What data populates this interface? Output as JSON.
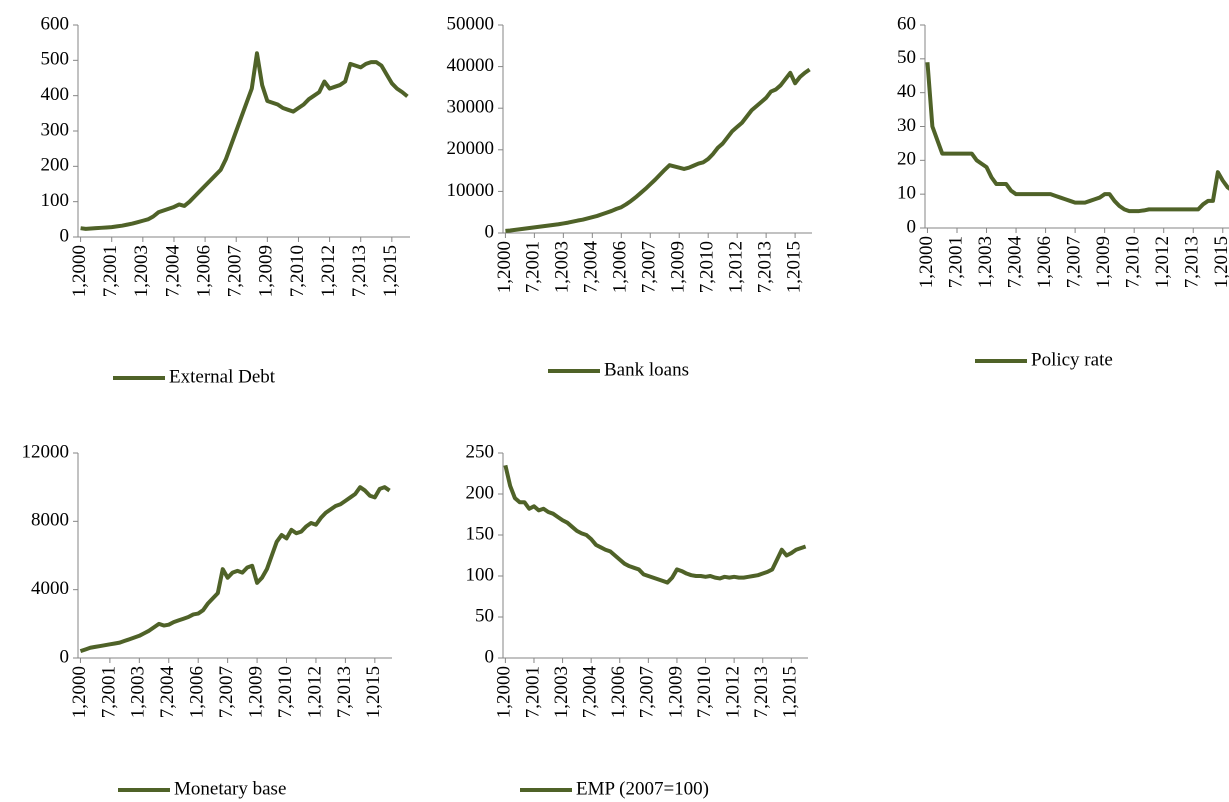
{
  "chart_data": [
    {
      "type": "line",
      "categories": [
        "1,2000",
        null,
        null,
        null,
        null,
        null,
        "7,2001",
        null,
        null,
        null,
        null,
        null,
        "1,2003",
        null,
        null,
        null,
        null,
        null,
        "7,2004",
        null,
        null,
        null,
        null,
        null,
        "1,2006",
        null,
        null,
        null,
        null,
        null,
        "7,2007",
        null,
        null,
        null,
        null,
        null,
        "1,2009",
        null,
        null,
        null,
        null,
        null,
        "7,2010",
        null,
        null,
        null,
        null,
        null,
        "1,2012",
        null,
        null,
        null,
        null,
        null,
        "7,2013",
        null,
        null,
        null,
        null,
        null,
        "1,2015",
        null,
        null,
        null
      ],
      "series": [
        {
          "name": "External Debt",
          "color": "#4f6228",
          "values": [
            25,
            23,
            24,
            25,
            26,
            27,
            28,
            30,
            32,
            35,
            38,
            42,
            46,
            50,
            58,
            70,
            75,
            80,
            85,
            92,
            88,
            100,
            115,
            130,
            145,
            160,
            175,
            190,
            220,
            260,
            300,
            340,
            380,
            420,
            520,
            430,
            385,
            380,
            375,
            365,
            360,
            355,
            365,
            375,
            390,
            400,
            410,
            440,
            420,
            425,
            430,
            440,
            490,
            485,
            480,
            490,
            495,
            495,
            485,
            460,
            435,
            420,
            410,
            398
          ]
        }
      ],
      "ylim": [
        0,
        600
      ],
      "yticks": [
        0,
        100,
        200,
        300,
        400,
        500,
        600
      ]
    },
    {
      "type": "line",
      "categories": [
        "1,2000",
        null,
        null,
        null,
        null,
        null,
        "7,2001",
        null,
        null,
        null,
        null,
        null,
        "1,2003",
        null,
        null,
        null,
        null,
        null,
        "7,2004",
        null,
        null,
        null,
        null,
        null,
        "1,2006",
        null,
        null,
        null,
        null,
        null,
        "7,2007",
        null,
        null,
        null,
        null,
        null,
        "1,2009",
        null,
        null,
        null,
        null,
        null,
        "7,2010",
        null,
        null,
        null,
        null,
        null,
        "1,2012",
        null,
        null,
        null,
        null,
        null,
        "7,2013",
        null,
        null,
        null,
        null,
        null,
        "1,2015",
        null,
        null,
        null
      ],
      "series": [
        {
          "name": "Bank loans",
          "color": "#4f6228",
          "values": [
            500,
            600,
            750,
            900,
            1050,
            1200,
            1350,
            1500,
            1650,
            1800,
            1950,
            2100,
            2300,
            2500,
            2750,
            3000,
            3200,
            3500,
            3800,
            4100,
            4500,
            4900,
            5300,
            5800,
            6200,
            6900,
            7700,
            8600,
            9600,
            10600,
            11700,
            12800,
            14000,
            15200,
            16300,
            16000,
            15700,
            15400,
            15700,
            16200,
            16700,
            17000,
            17800,
            19000,
            20500,
            21500,
            23000,
            24500,
            25500,
            26500,
            28000,
            29500,
            30500,
            31500,
            32500,
            34000,
            34500,
            35500,
            37000,
            38500,
            36000,
            37500,
            38500,
            39300
          ]
        }
      ],
      "ylim": [
        0,
        50000
      ],
      "yticks": [
        0,
        10000,
        20000,
        30000,
        40000,
        50000
      ]
    },
    {
      "type": "line",
      "categories": [
        "1,2000",
        null,
        null,
        null,
        null,
        null,
        "7,2001",
        null,
        null,
        null,
        null,
        null,
        "1,2003",
        null,
        null,
        null,
        null,
        null,
        "7,2004",
        null,
        null,
        null,
        null,
        null,
        "1,2006",
        null,
        null,
        null,
        null,
        null,
        "7,2007",
        null,
        null,
        null,
        null,
        null,
        "1,2009",
        null,
        null,
        null,
        null,
        null,
        "7,2010",
        null,
        null,
        null,
        null,
        null,
        "1,2012",
        null,
        null,
        null,
        null,
        null,
        "7,2013",
        null,
        null,
        null,
        null,
        null,
        "1,2015",
        null,
        null,
        null
      ],
      "series": [
        {
          "name": "Policy rate",
          "color": "#4f6228",
          "values": [
            49,
            30,
            26,
            22,
            22,
            22,
            22,
            22,
            22,
            22,
            20,
            19,
            18,
            15,
            13,
            13,
            13,
            11,
            10,
            10,
            10,
            10,
            10,
            10,
            10,
            10,
            9.5,
            9,
            8.5,
            8,
            7.5,
            7.5,
            7.5,
            8,
            8.5,
            9,
            10,
            10,
            8,
            6.5,
            5.5,
            5,
            5,
            5,
            5.2,
            5.5,
            5.5,
            5.5,
            5.5,
            5.5,
            5.5,
            5.5,
            5.5,
            5.5,
            5.5,
            5.5,
            7,
            8,
            8,
            16.5,
            14,
            12,
            11,
            11
          ]
        }
      ],
      "ylim": [
        0,
        60
      ],
      "yticks": [
        0,
        10,
        20,
        30,
        40,
        50,
        60
      ]
    },
    {
      "type": "line",
      "categories": [
        "1,2000",
        null,
        null,
        null,
        null,
        null,
        "7,2001",
        null,
        null,
        null,
        null,
        null,
        "1,2003",
        null,
        null,
        null,
        null,
        null,
        "7,2004",
        null,
        null,
        null,
        null,
        null,
        "1,2006",
        null,
        null,
        null,
        null,
        null,
        "7,2007",
        null,
        null,
        null,
        null,
        null,
        "1,2009",
        null,
        null,
        null,
        null,
        null,
        "7,2010",
        null,
        null,
        null,
        null,
        null,
        "1,2012",
        null,
        null,
        null,
        null,
        null,
        "7,2013",
        null,
        null,
        null,
        null,
        null,
        "1,2015",
        null,
        null,
        null
      ],
      "series": [
        {
          "name": "Monetary base",
          "color": "#4f6228",
          "values": [
            400,
            500,
            600,
            650,
            700,
            750,
            800,
            850,
            900,
            1000,
            1100,
            1200,
            1300,
            1450,
            1600,
            1800,
            2000,
            1900,
            1950,
            2100,
            2200,
            2300,
            2400,
            2550,
            2600,
            2800,
            3200,
            3500,
            3800,
            5200,
            4700,
            5000,
            5100,
            5000,
            5300,
            5400,
            4400,
            4700,
            5200,
            6000,
            6800,
            7200,
            7000,
            7500,
            7300,
            7400,
            7700,
            7900,
            7800,
            8200,
            8500,
            8700,
            8900,
            9000,
            9200,
            9400,
            9600,
            10000,
            9800,
            9500,
            9400,
            9900,
            10000,
            9800
          ]
        }
      ],
      "ylim": [
        0,
        12000
      ],
      "yticks": [
        0,
        4000,
        8000,
        12000
      ]
    },
    {
      "type": "line",
      "categories": [
        "1,2000",
        null,
        null,
        null,
        null,
        null,
        "7,2001",
        null,
        null,
        null,
        null,
        null,
        "1,2003",
        null,
        null,
        null,
        null,
        null,
        "7,2004",
        null,
        null,
        null,
        null,
        null,
        "1,2006",
        null,
        null,
        null,
        null,
        null,
        "7,2007",
        null,
        null,
        null,
        null,
        null,
        "1,2009",
        null,
        null,
        null,
        null,
        null,
        "7,2010",
        null,
        null,
        null,
        null,
        null,
        "1,2012",
        null,
        null,
        null,
        null,
        null,
        "7,2013",
        null,
        null,
        null,
        null,
        null,
        "1,2015",
        null,
        null,
        null
      ],
      "series": [
        {
          "name": "EMP (2007=100)",
          "color": "#4f6228",
          "values": [
            235,
            210,
            195,
            190,
            190,
            182,
            185,
            180,
            182,
            178,
            176,
            172,
            168,
            165,
            160,
            155,
            152,
            150,
            145,
            138,
            135,
            132,
            130,
            125,
            120,
            115,
            112,
            110,
            108,
            102,
            100,
            98,
            96,
            94,
            92,
            98,
            108,
            106,
            103,
            101,
            100,
            100,
            99,
            100,
            98,
            97,
            99,
            98,
            99,
            98,
            98,
            99,
            100,
            101,
            103,
            105,
            108,
            120,
            132,
            125,
            128,
            132,
            134,
            136
          ]
        }
      ],
      "ylim": [
        0,
        250
      ],
      "yticks": [
        0,
        50,
        100,
        150,
        200,
        250
      ]
    }
  ]
}
